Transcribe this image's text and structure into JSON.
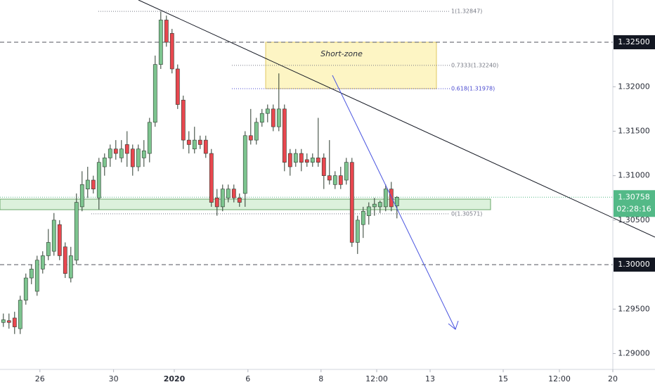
{
  "chart_data": {
    "type": "candlestick",
    "series": [
      {
        "up_color": "#7dc48f",
        "down_color": "#e8474f",
        "border_color": "#2b3a2e",
        "open": [
          1.2935,
          1.2937,
          1.294,
          1.2928,
          1.296,
          1.2985,
          1.297,
          1.2995,
          1.301,
          1.3015,
          1.3045,
          1.302,
          1.2985,
          1.3005,
          1.3065,
          1.3085,
          1.3095,
          1.3075,
          1.311,
          1.312,
          1.313,
          1.312,
          1.3135,
          1.313,
          1.311,
          1.312,
          1.3125,
          1.316,
          1.3225,
          1.3275,
          1.326,
          1.322,
          1.3185,
          1.314,
          1.313,
          1.314,
          1.314,
          1.3125,
          1.3075,
          1.3065,
          1.3075,
          1.3085,
          1.3075,
          1.308,
          1.3145,
          1.314,
          1.316,
          1.317,
          1.3175,
          1.3155,
          1.3175,
          1.3125,
          1.3115,
          1.3125,
          1.3118,
          1.3115,
          1.312,
          1.312,
          1.31,
          1.309,
          1.31,
          1.3095,
          1.3115,
          1.3025,
          1.3045,
          1.3055,
          1.3065,
          1.3065,
          1.3065,
          1.3085,
          1.3066
        ],
        "high": [
          1.2945,
          1.2945,
          1.2947,
          1.2965,
          1.299,
          1.3,
          1.301,
          1.3015,
          1.304,
          1.3058,
          1.305,
          1.3025,
          1.302,
          1.308,
          1.3105,
          1.311,
          1.31,
          1.312,
          1.3125,
          1.3135,
          1.314,
          1.314,
          1.315,
          1.3135,
          1.3135,
          1.314,
          1.3165,
          1.3235,
          1.32847,
          1.328,
          1.3265,
          1.3225,
          1.319,
          1.315,
          1.3155,
          1.3145,
          1.3145,
          1.313,
          1.3085,
          1.309,
          1.309,
          1.309,
          1.308,
          1.315,
          1.3175,
          1.3165,
          1.3175,
          1.318,
          1.318,
          1.3215,
          1.318,
          1.313,
          1.313,
          1.313,
          1.3125,
          1.3125,
          1.3165,
          1.3125,
          1.314,
          1.3105,
          1.311,
          1.312,
          1.312,
          1.3055,
          1.3065,
          1.307,
          1.3075,
          1.3072,
          1.309,
          1.3093,
          1.3077
        ],
        "low": [
          1.293,
          1.2928,
          1.2922,
          1.2922,
          1.2955,
          1.2978,
          1.2965,
          1.299,
          1.3005,
          1.301,
          1.3005,
          1.2985,
          1.298,
          1.3,
          1.306,
          1.3075,
          1.308,
          1.3062,
          1.31,
          1.311,
          1.3118,
          1.3115,
          1.311,
          1.31,
          1.3105,
          1.311,
          1.3115,
          1.3155,
          1.322,
          1.3245,
          1.3215,
          1.3175,
          1.313,
          1.3125,
          1.3125,
          1.313,
          1.312,
          1.3065,
          1.3055,
          1.306,
          1.307,
          1.307,
          1.3065,
          1.3065,
          1.3135,
          1.3135,
          1.3155,
          1.316,
          1.315,
          1.315,
          1.3105,
          1.31,
          1.311,
          1.3105,
          1.311,
          1.311,
          1.311,
          1.3085,
          1.309,
          1.3085,
          1.3085,
          1.309,
          1.302,
          1.3012,
          1.303,
          1.3045,
          1.3055,
          1.3058,
          1.306,
          1.306,
          1.3052
        ],
        "close": [
          1.2938,
          1.2935,
          1.293,
          1.296,
          1.2985,
          1.2995,
          1.3005,
          1.301,
          1.3025,
          1.305,
          1.301,
          1.299,
          1.301,
          1.307,
          1.309,
          1.3095,
          1.3085,
          1.3115,
          1.312,
          1.313,
          1.3125,
          1.313,
          1.3125,
          1.311,
          1.313,
          1.3128,
          1.316,
          1.3225,
          1.3275,
          1.325,
          1.322,
          1.318,
          1.314,
          1.3135,
          1.314,
          1.3135,
          1.3125,
          1.307,
          1.3065,
          1.3085,
          1.3085,
          1.3075,
          1.307,
          1.3145,
          1.314,
          1.316,
          1.317,
          1.3175,
          1.3155,
          1.3175,
          1.3115,
          1.311,
          1.3125,
          1.3115,
          1.3115,
          1.312,
          1.3115,
          1.31,
          1.3095,
          1.31,
          1.309,
          1.3115,
          1.3025,
          1.305,
          1.306,
          1.3065,
          1.3068,
          1.307,
          1.3085,
          1.3065,
          1.30758
        ]
      }
    ],
    "xlim": [
      -0.6,
      108.4
    ],
    "xticks": [
      {
        "value": 6.5,
        "label": "26"
      },
      {
        "value": 19.6,
        "label": "30"
      },
      {
        "value": 30.4,
        "label": "2020"
      },
      {
        "value": 43.5,
        "label": "6"
      },
      {
        "value": 56.5,
        "label": "8"
      },
      {
        "value": 66.4,
        "label": "12:00"
      },
      {
        "value": 75.9,
        "label": "13"
      },
      {
        "value": 88.9,
        "label": "15"
      },
      {
        "value": 98.9,
        "label": "12:00"
      },
      {
        "value": 108.4,
        "label": "20"
      }
    ],
    "ylim": [
      1.28822,
      1.32975
    ],
    "yticks": [
      {
        "value": 1.29,
        "label": "1.29000"
      },
      {
        "value": 1.295,
        "label": "1.29500"
      },
      {
        "value": 1.305,
        "label": "1.30500"
      },
      {
        "value": 1.31,
        "label": "1.31000"
      },
      {
        "value": 1.315,
        "label": "1.31500"
      },
      {
        "value": 1.32,
        "label": "1.32000"
      }
    ],
    "levels": [
      {
        "value": 1.325,
        "label": "1.32500"
      },
      {
        "value": 1.3,
        "label": "1.30000"
      }
    ],
    "current_price": {
      "value": 1.30758,
      "label": "1.30758",
      "countdown": "02:28:16"
    },
    "fib_levels": [
      {
        "value": 1.32847,
        "label": "1(1.32847)",
        "color": "#787b86"
      },
      {
        "value": 1.3224,
        "label": "0.7333(1.32240)",
        "color": "#787b86"
      },
      {
        "value": 1.31978,
        "label": "0.618(1.31978)",
        "color": "#4b4bd0"
      },
      {
        "value": 1.30571,
        "label": "0(1.30571)",
        "color": "#787b86"
      }
    ],
    "annotations": [
      "Short-zone"
    ],
    "grid": false
  }
}
